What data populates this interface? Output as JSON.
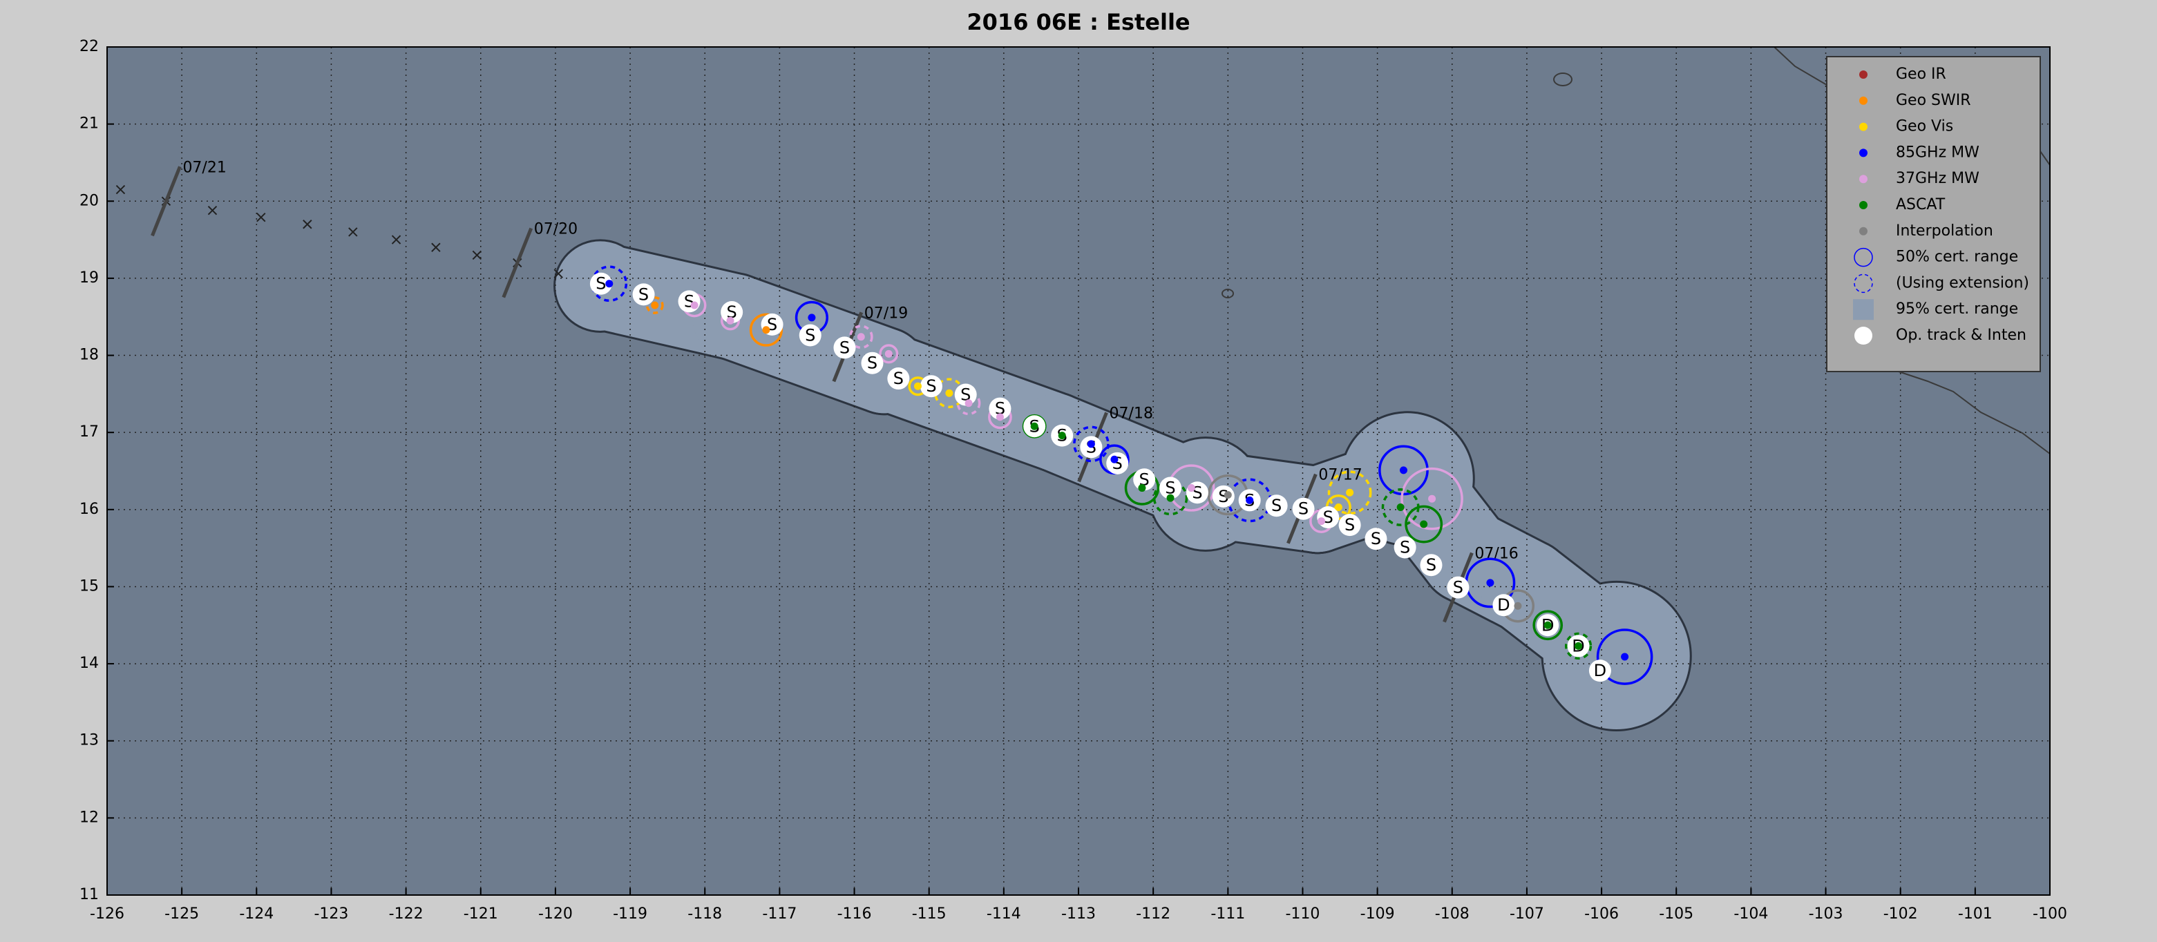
{
  "chart_data": {
    "type": "scatter",
    "title": "2016  06E :  Estelle",
    "xlim": [
      -126,
      -100
    ],
    "ylim": [
      11,
      22
    ],
    "xticks": [
      -126,
      -125,
      -124,
      -123,
      -122,
      -121,
      -120,
      -119,
      -118,
      -117,
      -116,
      -115,
      -114,
      -113,
      -112,
      -111,
      -110,
      -109,
      -108,
      -107,
      -106,
      -105,
      -104,
      -103,
      -102,
      -101,
      -100
    ],
    "yticks": [
      11,
      12,
      13,
      14,
      15,
      16,
      17,
      18,
      19,
      20,
      21,
      22
    ],
    "grid": true,
    "legend": "upper right",
    "cert_95": {
      "name": "95% cert. range",
      "color": "#8c9cb1",
      "x": [
        -119.4,
        -117.6,
        -115.6,
        -113.3,
        -111.3,
        -109.8,
        -108.6,
        -107.8,
        -107.0,
        -105.8
      ],
      "y": [
        18.9,
        18.5,
        17.8,
        17.0,
        16.2,
        16.0,
        16.4,
        15.4,
        15.0,
        14.1
      ],
      "r": [
        0.58,
        0.55,
        0.55,
        0.5,
        0.72,
        0.55,
        0.85,
        0.6,
        0.6,
        0.95
      ]
    },
    "cert_50": {
      "name": "50% cert. range",
      "color": "#0000ff"
    },
    "extension": {
      "name": "(Using extension)",
      "color": "#0000ff"
    },
    "series": [
      {
        "name": "Geo IR",
        "color": "#a52a2a",
        "x": [],
        "y": [],
        "r": [],
        "dashed": []
      },
      {
        "name": "Geo SWIR",
        "color": "#ff8c00",
        "x": [
          -118.67,
          -117.18
        ],
        "y": [
          18.65,
          18.33
        ],
        "r": [
          0.1,
          0.2
        ],
        "dashed": [
          true,
          false
        ]
      },
      {
        "name": "Geo Vis",
        "color": "#ffd700",
        "x": [
          -115.15,
          -114.73,
          -109.37,
          -109.52
        ],
        "y": [
          17.6,
          17.51,
          16.22,
          16.03
        ],
        "r": [
          0.11,
          0.18,
          0.27,
          0.15
        ],
        "dashed": [
          false,
          true,
          true,
          false
        ]
      },
      {
        "name": "85GHz MW",
        "color": "#0000ff",
        "x": [
          -119.28,
          -116.57,
          -112.83,
          -112.52,
          -110.71,
          -108.65,
          -107.49,
          -105.69
        ],
        "y": [
          18.93,
          18.49,
          16.85,
          16.65,
          16.12,
          16.51,
          15.05,
          14.09
        ],
        "r": [
          0.22,
          0.2,
          0.22,
          0.18,
          0.27,
          0.31,
          0.31,
          0.35
        ],
        "dashed": [
          true,
          false,
          true,
          false,
          true,
          false,
          false,
          false
        ]
      },
      {
        "name": "37GHz MW",
        "color": "#dda0dd",
        "x": [
          -118.14,
          -117.66,
          -115.91,
          -115.54,
          -114.47,
          -114.05,
          -111.49,
          -108.27,
          -109.75
        ],
        "y": [
          18.65,
          18.45,
          18.24,
          18.02,
          17.38,
          17.2,
          16.28,
          16.14,
          15.85
        ],
        "r": [
          0.14,
          0.11,
          0.14,
          0.11,
          0.14,
          0.14,
          0.29,
          0.39,
          0.14
        ],
        "dashed": [
          false,
          false,
          true,
          false,
          true,
          false,
          false,
          false,
          false
        ]
      },
      {
        "name": "ASCAT",
        "color": "#008000",
        "x": [
          -113.59,
          -113.22,
          -112.15,
          -111.77,
          -108.69,
          -108.38,
          -106.72,
          -106.31
        ],
        "y": [
          17.08,
          16.96,
          16.28,
          16.15,
          16.03,
          15.81,
          14.5,
          14.23
        ],
        "r": [
          0.14,
          0.12,
          0.21,
          0.21,
          0.23,
          0.23,
          0.18,
          0.16
        ],
        "dashed": [
          false,
          false,
          false,
          true,
          true,
          false,
          false,
          true
        ]
      },
      {
        "name": "Interpolation",
        "color": "#808080",
        "x": [
          -111.0,
          -107.12
        ],
        "y": [
          16.19,
          14.75
        ],
        "r": [
          0.25,
          0.2
        ],
        "dashed": [
          false,
          false
        ]
      }
    ],
    "op_track": {
      "name": "Op. track & Inten",
      "color": "#ffffff",
      "x": [
        -119.39,
        -118.82,
        -118.21,
        -117.64,
        -117.1,
        -116.59,
        -116.13,
        -115.76,
        -115.41,
        -114.97,
        -114.51,
        -114.05,
        -113.59,
        -113.22,
        -112.83,
        -112.48,
        -112.12,
        -111.77,
        -111.41,
        -111.06,
        -110.71,
        -110.35,
        -109.99,
        -109.66,
        -109.37,
        -109.02,
        -108.63,
        -108.28,
        -107.92,
        -107.31,
        -106.72,
        -106.31,
        -106.02
      ],
      "y": [
        18.93,
        18.79,
        18.7,
        18.56,
        18.4,
        18.26,
        18.1,
        17.9,
        17.7,
        17.6,
        17.49,
        17.31,
        17.08,
        16.96,
        16.81,
        16.6,
        16.39,
        16.28,
        16.22,
        16.17,
        16.12,
        16.05,
        16.01,
        15.9,
        15.8,
        15.62,
        15.51,
        15.28,
        14.99,
        14.76,
        14.5,
        14.23,
        13.91
      ],
      "labels": [
        "S",
        "S",
        "S",
        "S",
        "S",
        "S",
        "S",
        "S",
        "S",
        "S",
        "S",
        "S",
        "S",
        "S",
        "S",
        "S",
        "S",
        "S",
        "S",
        "S",
        "S",
        "S",
        "S",
        "S",
        "S",
        "S",
        "S",
        "S",
        "S",
        "D",
        "D",
        "D",
        "D"
      ]
    },
    "past_track": {
      "x": [
        -125.82,
        -125.21,
        -124.59,
        -123.94,
        -123.32,
        -122.71,
        -122.13,
        -121.6,
        -121.05,
        -120.51,
        -119.96
      ],
      "y": [
        20.15,
        20.0,
        19.88,
        19.79,
        19.7,
        19.6,
        19.5,
        19.4,
        19.3,
        19.2,
        19.06
      ]
    },
    "date_labels": {
      "labels": [
        "07/21",
        "07/20",
        "07/19",
        "07/18",
        "07/17",
        "07/16"
      ],
      "x": [
        -125.21,
        -120.51,
        -116.09,
        -112.81,
        -110.01,
        -107.92
      ],
      "y": [
        20.0,
        19.2,
        18.11,
        16.81,
        16.01,
        14.99
      ]
    }
  }
}
